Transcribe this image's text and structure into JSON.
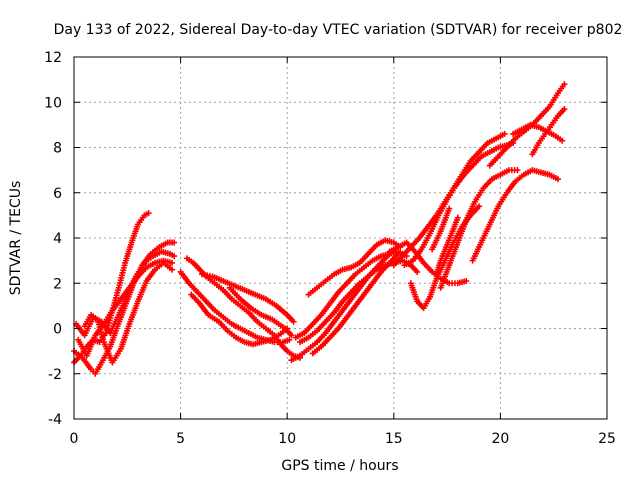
{
  "chart_data": {
    "type": "scatter",
    "title": "Day 133 of 2022, Sidereal Day-to-day VTEC variation (SDTVAR) for receiver p802",
    "xlabel": "GPS time / hours",
    "ylabel": "SDTVAR / TECUs",
    "xlim": [
      0,
      25
    ],
    "ylim": [
      -4,
      12
    ],
    "x_ticks": [
      "0",
      "5",
      "10",
      "15",
      "20",
      "25"
    ],
    "y_ticks": [
      "-4",
      "-2",
      "0",
      "2",
      "4",
      "6",
      "8",
      "10",
      "12"
    ],
    "grid": true,
    "marker": "+",
    "color": "#ff0000",
    "series": [
      {
        "x": [
          0.0,
          0.3,
          0.6,
          0.9,
          1.2,
          1.5,
          1.8,
          2.1,
          2.4,
          2.7,
          3.0,
          3.3,
          3.5
        ],
        "y": [
          -1.5,
          -1.2,
          -0.8,
          -0.5,
          -0.6,
          -0.2,
          0.8,
          1.8,
          2.9,
          3.8,
          4.6,
          5.0,
          5.1
        ]
      },
      {
        "x": [
          0.0,
          0.4,
          0.8,
          1.0,
          1.3,
          1.7,
          2.0,
          2.4,
          2.8,
          3.2,
          3.6,
          4.0,
          4.4,
          4.7
        ],
        "y": [
          -1.0,
          -1.3,
          -1.8,
          -2.0,
          -1.5,
          -0.8,
          0.0,
          1.0,
          2.0,
          2.8,
          3.3,
          3.6,
          3.8,
          3.8
        ]
      },
      {
        "x": [
          0.1,
          0.5,
          0.9,
          1.3,
          1.7,
          2.1,
          2.5,
          2.9,
          3.3,
          3.7,
          4.1,
          4.5,
          4.7
        ],
        "y": [
          0.2,
          -0.3,
          0.5,
          0.3,
          -0.2,
          0.6,
          1.5,
          2.3,
          2.9,
          3.2,
          3.4,
          3.3,
          3.2
        ]
      },
      {
        "x": [
          0.2,
          0.6,
          1.0,
          1.4,
          1.8,
          2.2,
          2.6,
          3.0,
          3.4,
          3.8,
          4.2,
          4.6
        ],
        "y": [
          -0.5,
          -1.2,
          -0.3,
          0.2,
          0.8,
          1.3,
          1.8,
          2.3,
          2.7,
          2.9,
          3.0,
          2.9
        ]
      },
      {
        "x": [
          0.5,
          0.8,
          1.1,
          1.4,
          1.8,
          2.2,
          2.6,
          3.0,
          3.4,
          3.8,
          4.2,
          4.6
        ],
        "y": [
          0.1,
          0.6,
          0.4,
          -0.6,
          -1.5,
          -0.9,
          0.2,
          1.2,
          2.1,
          2.6,
          2.9,
          2.6
        ]
      },
      {
        "x": [
          5.3,
          5.6,
          5.9,
          6.2,
          6.6,
          7.0,
          7.4,
          7.8,
          8.2,
          8.6,
          9.0,
          9.4,
          9.7,
          10.0,
          10.3,
          10.6
        ],
        "y": [
          3.1,
          2.9,
          2.6,
          2.3,
          2.0,
          1.7,
          1.3,
          1.0,
          0.7,
          0.3,
          0.0,
          -0.3,
          -0.7,
          -1.0,
          -1.2,
          -1.3
        ]
      },
      {
        "x": [
          5.0,
          5.4,
          5.8,
          6.2,
          6.6,
          7.0,
          7.4,
          7.8,
          8.2,
          8.6,
          9.0,
          9.4,
          9.8,
          10.1
        ],
        "y": [
          2.5,
          2.0,
          1.6,
          1.2,
          0.8,
          0.5,
          0.2,
          0.0,
          -0.2,
          -0.4,
          -0.5,
          -0.6,
          -0.6,
          -0.5
        ]
      },
      {
        "x": [
          5.5,
          5.9,
          6.3,
          6.8,
          7.2,
          7.6,
          8.0,
          8.4,
          8.8,
          9.2,
          9.6,
          10.0
        ],
        "y": [
          1.5,
          1.1,
          0.6,
          0.3,
          -0.1,
          -0.4,
          -0.6,
          -0.7,
          -0.6,
          -0.5,
          -0.3,
          0.0
        ]
      },
      {
        "x": [
          6.0,
          6.5,
          7.0,
          7.5,
          8.0,
          8.5,
          9.0,
          9.5,
          10.0,
          10.3
        ],
        "y": [
          2.4,
          2.3,
          2.1,
          1.9,
          1.7,
          1.5,
          1.3,
          1.0,
          0.6,
          0.3
        ]
      },
      {
        "x": [
          7.3,
          7.8,
          8.3,
          8.8,
          9.3,
          9.6,
          9.9,
          10.2
        ],
        "y": [
          1.8,
          1.3,
          0.9,
          0.6,
          0.4,
          0.2,
          0.0,
          -0.3
        ]
      },
      {
        "x": [
          10.2,
          10.6,
          11.0,
          11.4,
          11.8,
          12.2,
          12.6,
          13.0,
          13.4,
          13.8,
          14.2,
          14.6,
          15.0
        ],
        "y": [
          -1.4,
          -1.2,
          -0.9,
          -0.6,
          -0.2,
          0.3,
          0.8,
          1.3,
          1.8,
          2.3,
          2.7,
          3.1,
          3.5
        ]
      },
      {
        "x": [
          10.4,
          10.8,
          11.2,
          11.6,
          12.0,
          12.4,
          12.8,
          13.2,
          13.6,
          14.0,
          14.4,
          14.8,
          15.2,
          15.6
        ],
        "y": [
          -0.4,
          -0.2,
          0.2,
          0.6,
          1.1,
          1.6,
          2.0,
          2.4,
          2.7,
          3.0,
          3.2,
          3.3,
          3.4,
          3.2
        ]
      },
      {
        "x": [
          10.6,
          11.0,
          11.4,
          11.8,
          12.2,
          12.6,
          13.0,
          13.4,
          13.8,
          14.2,
          14.6,
          15.0,
          15.4,
          15.8,
          16.1
        ],
        "y": [
          -0.6,
          -0.4,
          -0.1,
          0.3,
          0.7,
          1.2,
          1.6,
          2.0,
          2.3,
          2.6,
          2.8,
          2.9,
          3.0,
          2.8,
          2.5
        ]
      },
      {
        "x": [
          11.2,
          11.6,
          12.0,
          12.4,
          12.8,
          13.2,
          13.6,
          14.0,
          14.4,
          14.8,
          15.2
        ],
        "y": [
          -1.1,
          -0.8,
          -0.4,
          0.0,
          0.5,
          1.0,
          1.5,
          2.0,
          2.5,
          2.9,
          3.3
        ]
      },
      {
        "x": [
          11.0,
          11.4,
          11.8,
          12.2,
          12.6,
          13.0,
          13.4,
          13.8,
          14.2,
          14.6,
          15.0,
          15.3
        ],
        "y": [
          1.5,
          1.8,
          2.1,
          2.4,
          2.6,
          2.7,
          2.9,
          3.3,
          3.7,
          3.9,
          3.8,
          3.6
        ]
      },
      {
        "x": [
          15.0,
          15.4,
          15.8,
          16.2,
          16.6,
          17.0,
          17.4,
          17.8,
          18.2,
          18.6,
          19.0,
          19.4,
          19.8,
          20.2
        ],
        "y": [
          2.8,
          3.2,
          3.6,
          4.0,
          4.5,
          5.0,
          5.6,
          6.2,
          6.8,
          7.4,
          7.8,
          8.2,
          8.4,
          8.6
        ]
      },
      {
        "x": [
          15.5,
          15.9,
          16.3,
          16.7,
          17.1,
          17.5,
          17.9,
          18.3,
          18.7,
          19.1,
          19.5,
          19.9,
          20.3,
          20.6
        ],
        "y": [
          2.8,
          3.0,
          3.5,
          4.2,
          5.0,
          5.7,
          6.3,
          6.8,
          7.2,
          7.6,
          7.8,
          8.0,
          8.1,
          8.2
        ]
      },
      {
        "x": [
          15.8,
          16.1,
          16.4,
          16.7,
          17.0,
          17.4,
          17.8,
          18.2,
          18.6,
          19.0
        ],
        "y": [
          2.0,
          1.2,
          0.9,
          1.4,
          2.2,
          3.0,
          3.8,
          4.5,
          5.0,
          5.4
        ]
      },
      {
        "x": [
          14.8,
          15.2,
          15.6,
          16.0,
          16.4,
          16.8,
          17.2,
          17.6,
          18.0,
          18.4
        ],
        "y": [
          3.4,
          3.6,
          3.8,
          3.4,
          2.9,
          2.5,
          2.2,
          2.0,
          2.0,
          2.1
        ]
      },
      {
        "x": [
          17.2,
          17.6,
          18.0,
          18.4,
          18.8,
          19.2,
          19.6,
          20.0,
          20.4,
          20.8
        ],
        "y": [
          1.8,
          2.8,
          3.8,
          4.8,
          5.6,
          6.2,
          6.6,
          6.8,
          7.0,
          7.0
        ]
      },
      {
        "x": [
          18.7,
          19.1,
          19.5,
          19.9,
          20.3,
          20.7,
          21.1,
          21.5,
          21.9,
          22.3,
          22.7
        ],
        "y": [
          3.0,
          3.8,
          4.6,
          5.4,
          6.0,
          6.5,
          6.8,
          7.0,
          6.9,
          6.8,
          6.6
        ]
      },
      {
        "x": [
          19.5,
          19.9,
          20.3,
          20.7,
          21.1,
          21.5,
          21.9,
          22.3,
          22.7,
          23.0
        ],
        "y": [
          7.2,
          7.6,
          8.0,
          8.4,
          8.7,
          9.0,
          9.4,
          9.8,
          10.4,
          10.8
        ]
      },
      {
        "x": [
          20.6,
          21.0,
          21.4,
          21.8,
          22.2,
          22.6,
          22.9
        ],
        "y": [
          8.6,
          8.8,
          9.0,
          8.9,
          8.7,
          8.5,
          8.3
        ]
      },
      {
        "x": [
          21.5,
          21.8,
          22.1,
          22.4,
          22.7,
          23.0
        ],
        "y": [
          7.7,
          8.2,
          8.6,
          9.0,
          9.4,
          9.7
        ]
      },
      {
        "x": [
          16.8,
          17.0,
          17.2,
          17.4,
          17.6
        ],
        "y": [
          3.5,
          3.9,
          4.3,
          4.8,
          5.3
        ]
      },
      {
        "x": [
          17.0,
          17.2,
          17.5,
          17.8,
          18.0
        ],
        "y": [
          2.4,
          3.0,
          3.7,
          4.4,
          4.9
        ]
      }
    ]
  }
}
